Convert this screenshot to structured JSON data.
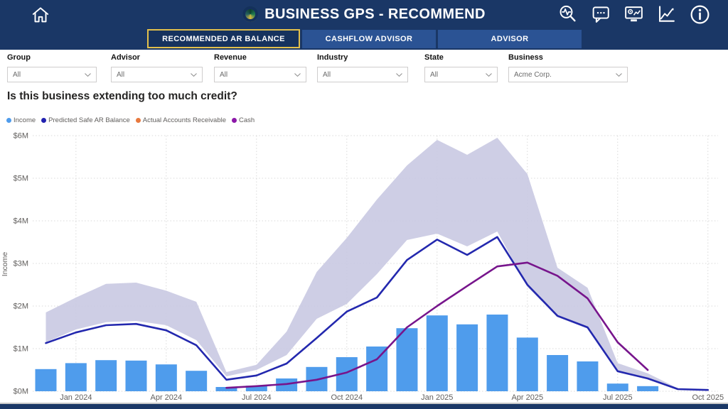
{
  "colors": {
    "navy": "#1A3766",
    "tab_blue": "#2B5394",
    "accent_gold": "#E2C04C",
    "bar_blue": "#4F9CEC",
    "predicted_blue": "#2328AE",
    "cash_purple": "#77158C",
    "band_lavender": "#C9C9E2",
    "ar_orange": "#E8793E"
  },
  "header": {
    "title": "BUSINESS GPS - RECOMMEND",
    "icon_names": [
      "home-icon",
      "search-insights-icon",
      "comments-icon",
      "monitor-report-icon",
      "trend-chart-icon",
      "info-icon"
    ]
  },
  "tabs": [
    {
      "label": "RECOMMENDED AR BALANCE",
      "active": true
    },
    {
      "label": "CASHFLOW ADVISOR",
      "active": false
    },
    {
      "label": "ADVISOR",
      "active": false
    }
  ],
  "filters": [
    {
      "label": "Group",
      "value": "All"
    },
    {
      "label": "Advisor",
      "value": "All"
    },
    {
      "label": "Revenue",
      "value": "All"
    },
    {
      "label": "Industry",
      "value": "All"
    },
    {
      "label": "State",
      "value": "All"
    },
    {
      "label": "Business",
      "value": "Acme Corp."
    }
  ],
  "question": "Is this business extending too much credit?",
  "legend": [
    {
      "label": "Income",
      "color": "#4F9CEC"
    },
    {
      "label": "Predicted Safe AR Balance",
      "color": "#2222B0"
    },
    {
      "label": "Actual Accounts Receivable",
      "color": "#E8793E"
    },
    {
      "label": "Cash",
      "color": "#8C18A8"
    }
  ],
  "chart_data": {
    "type": "combo",
    "unit": "$M",
    "ylabel": "Income",
    "ylim": [
      0,
      6
    ],
    "yticks": [
      "$0M",
      "$1M",
      "$2M",
      "$3M",
      "$4M",
      "$5M",
      "$6M"
    ],
    "x": [
      "Dec 2023",
      "Jan 2024",
      "Feb 2024",
      "Mar 2024",
      "Apr 2024",
      "May 2024",
      "Jun 2024",
      "Jul 2024",
      "Aug 2024",
      "Sep 2024",
      "Oct 2024",
      "Nov 2024",
      "Dec 2024",
      "Jan 2025",
      "Feb 2025",
      "Mar 2025",
      "Apr 2025",
      "May 2025",
      "Jun 2025",
      "Jul 2025",
      "Aug 2025",
      "Sep 2025",
      "Oct 2025"
    ],
    "xticks": [
      {
        "label": "Jan 2024",
        "i": 1
      },
      {
        "label": "Apr 2024",
        "i": 4
      },
      {
        "label": "Jul 2024",
        "i": 7
      },
      {
        "label": "Oct 2024",
        "i": 10
      },
      {
        "label": "Jan 2025",
        "i": 13
      },
      {
        "label": "Apr 2025",
        "i": 16
      },
      {
        "label": "Jul 2025",
        "i": 19
      },
      {
        "label": "Oct 2025",
        "i": 22
      }
    ],
    "series": [
      {
        "name": "Income",
        "type": "bar",
        "color": "#4F9CEC",
        "values": [
          0.52,
          0.66,
          0.73,
          0.72,
          0.63,
          0.48,
          0.1,
          0.13,
          0.3,
          0.57,
          0.8,
          1.05,
          1.48,
          1.78,
          1.57,
          1.8,
          1.26,
          0.85,
          0.7,
          0.18,
          0.12,
          null,
          null
        ]
      },
      {
        "name": "Predicted Safe AR Balance",
        "type": "line",
        "color": "#2328AE",
        "values": [
          1.13,
          1.38,
          1.55,
          1.58,
          1.43,
          1.08,
          0.27,
          0.37,
          0.65,
          1.25,
          1.87,
          2.2,
          3.08,
          3.56,
          3.2,
          3.62,
          2.5,
          1.77,
          1.5,
          0.47,
          0.3,
          0.05,
          0.03
        ]
      },
      {
        "name": "Cash",
        "type": "line",
        "color": "#77158C",
        "values": [
          null,
          null,
          null,
          null,
          null,
          null,
          0.08,
          0.12,
          0.17,
          0.27,
          0.44,
          0.75,
          1.5,
          2.0,
          2.47,
          2.93,
          3.02,
          2.71,
          2.18,
          1.15,
          0.5,
          null,
          null
        ]
      }
    ],
    "range_band": {
      "color": "#C9C9E2",
      "lower": [
        1.15,
        1.45,
        1.62,
        1.65,
        1.55,
        1.2,
        0.35,
        0.5,
        0.85,
        1.7,
        2.05,
        2.75,
        3.55,
        3.7,
        3.4,
        3.75,
        2.45,
        1.74,
        1.47,
        0.49,
        0.3,
        0.04,
        null
      ],
      "upper": [
        1.85,
        2.2,
        2.52,
        2.55,
        2.36,
        2.1,
        0.45,
        0.62,
        1.4,
        2.8,
        3.6,
        4.5,
        5.3,
        5.9,
        5.55,
        5.95,
        5.1,
        2.9,
        2.43,
        0.66,
        0.42,
        0.07,
        null
      ]
    },
    "legend_position": "top-left",
    "grid": true
  }
}
